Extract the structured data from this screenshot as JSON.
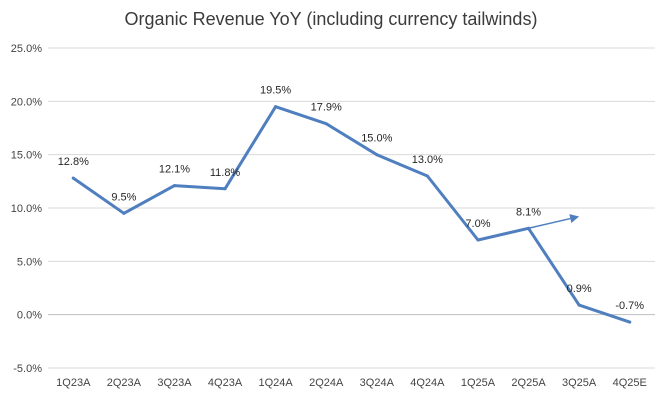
{
  "chart_data": {
    "type": "line",
    "title": "Organic Revenue YoY (including currency tailwinds)",
    "xlabel": "",
    "ylabel": "",
    "categories": [
      "1Q23A",
      "2Q23A",
      "3Q23A",
      "4Q23A",
      "1Q24A",
      "2Q24A",
      "3Q24A",
      "4Q24A",
      "1Q25A",
      "2Q25A",
      "3Q25A",
      "4Q25E"
    ],
    "series": [
      {
        "values": [
          12.8,
          9.5,
          12.1,
          11.8,
          19.5,
          17.9,
          15.0,
          13.0,
          7.0,
          8.1,
          0.9,
          -0.7
        ]
      }
    ],
    "data_labels": [
      "12.8%",
      "9.5%",
      "12.1%",
      "11.8%",
      "19.5%",
      "17.9%",
      "15.0%",
      "13.0%",
      "7.0%",
      "8.1%",
      "0.9%",
      "-0.7%"
    ],
    "ylim": [
      -5,
      25
    ],
    "yticks": [
      -5,
      0,
      5,
      10,
      15,
      20,
      25
    ],
    "ytick_labels": [
      "-5.0%",
      "0.0%",
      "5.0%",
      "10.0%",
      "15.0%",
      "20.0%",
      "25.0%"
    ],
    "grid": true,
    "legend": "none",
    "annotation": {
      "type": "arrow",
      "from": {
        "x": "2Q25A",
        "y": 8.1
      },
      "to": {
        "x": "3Q25A",
        "y": 9.2
      }
    },
    "colors": {
      "line": "#4f7fbf",
      "grid": "#d9d9d9",
      "axis": "#bfbfbf"
    }
  }
}
